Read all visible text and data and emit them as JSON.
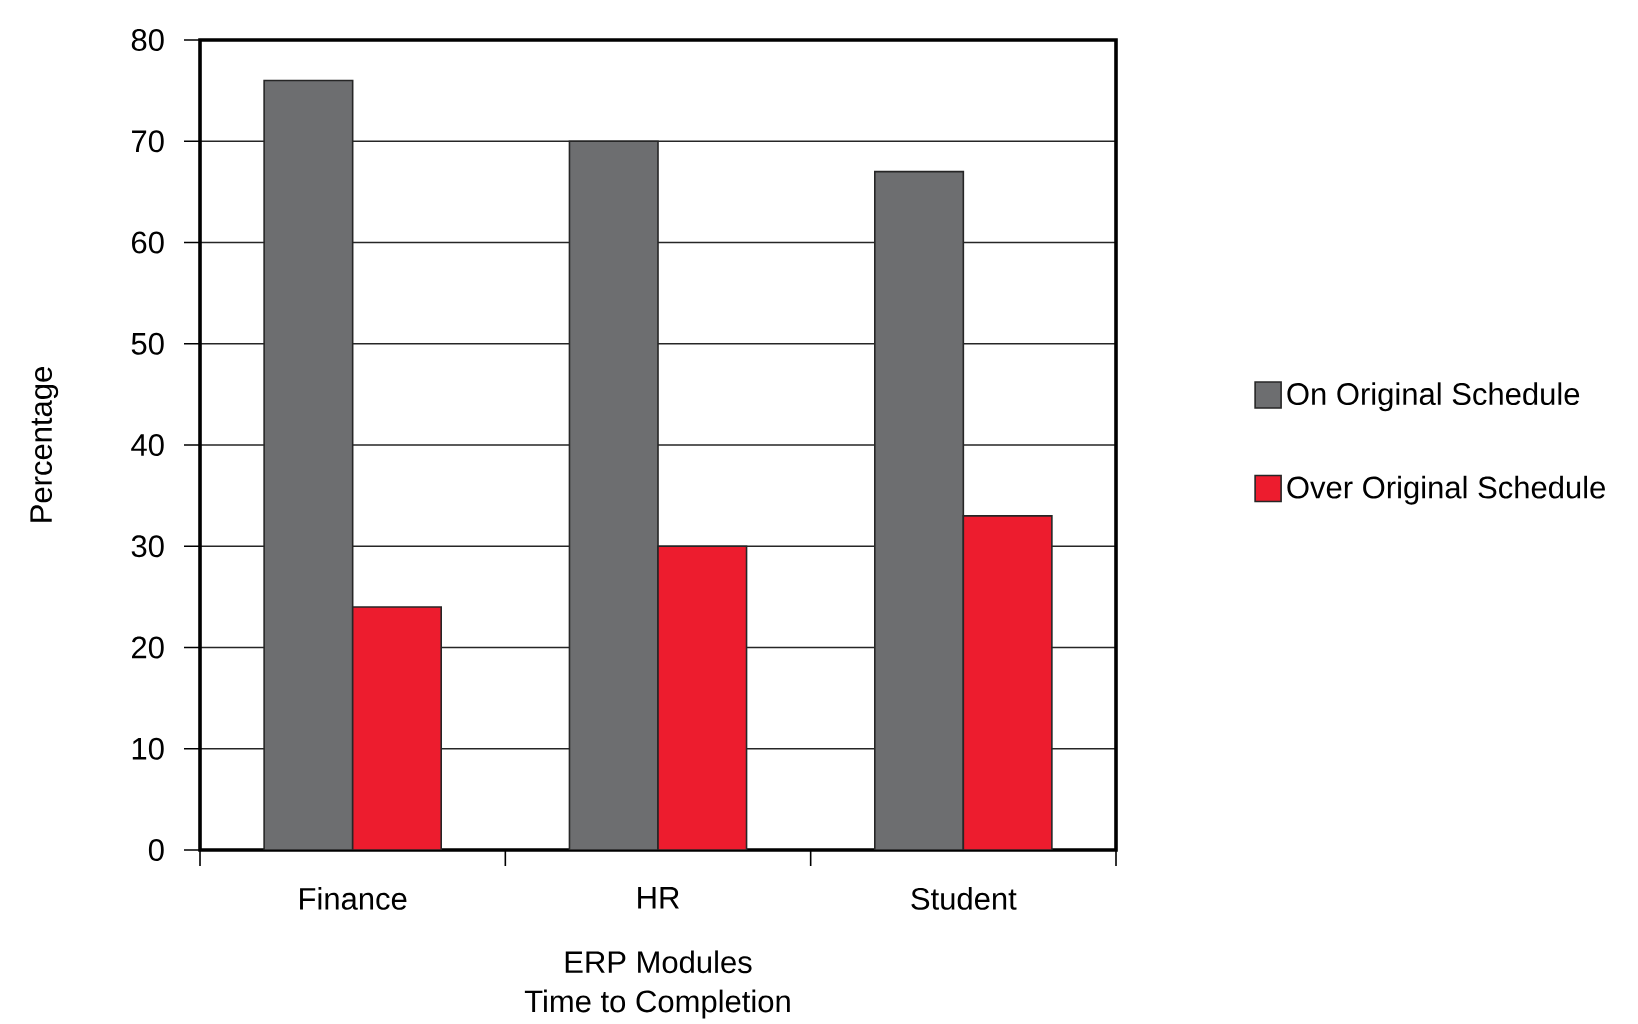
{
  "chart_data": {
    "type": "bar",
    "title": "Time to Completion",
    "xlabel": "ERP Modules",
    "ylabel": "Percentage",
    "categories": [
      "Finance",
      "HR",
      "Student"
    ],
    "series": [
      {
        "name": "On Original Schedule",
        "color": "#6d6e70",
        "values": [
          76,
          70,
          67
        ]
      },
      {
        "name": "Over Original Schedule",
        "color": "#ed1c2e",
        "values": [
          24,
          30,
          33
        ]
      }
    ],
    "ylim": [
      0,
      80
    ],
    "yticks": [
      0,
      10,
      20,
      30,
      40,
      50,
      60,
      70,
      80
    ],
    "grid": "y",
    "legend": "right"
  }
}
